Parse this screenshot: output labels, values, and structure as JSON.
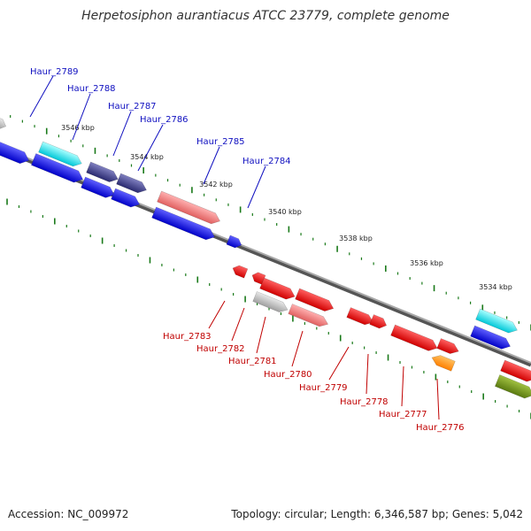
{
  "title": "Herpetosiphon aurantiacus ATCC 23779, complete genome",
  "footer": {
    "accession": "Accession: NC_009972",
    "topology": "Topology: circular; Length: 6,346,587 bp; Genes: 5,042"
  },
  "colors": {
    "forward_label": "#1010c0",
    "reverse_label": "#c00000",
    "backbone": "#808080",
    "tick": "#1a7a1a"
  },
  "ticks": [
    {
      "label": "3546 kbp"
    },
    {
      "label": "3544 kbp"
    },
    {
      "label": "3542 kbp"
    },
    {
      "label": "3540 kbp"
    },
    {
      "label": "3538 kbp"
    },
    {
      "label": "3536 kbp"
    },
    {
      "label": "3534 kbp"
    }
  ],
  "forward_labels": [
    {
      "text": "Haur_2789"
    },
    {
      "text": "Haur_2788"
    },
    {
      "text": "Haur_2787"
    },
    {
      "text": "Haur_2786"
    },
    {
      "text": "Haur_2785"
    },
    {
      "text": "Haur_2784"
    }
  ],
  "reverse_labels": [
    {
      "text": "Haur_2783"
    },
    {
      "text": "Haur_2782"
    },
    {
      "text": "Haur_2781"
    },
    {
      "text": "Haur_2780"
    },
    {
      "text": "Haur_2779"
    },
    {
      "text": "Haur_2778"
    },
    {
      "text": "Haur_2777"
    },
    {
      "text": "Haur_2776"
    }
  ]
}
